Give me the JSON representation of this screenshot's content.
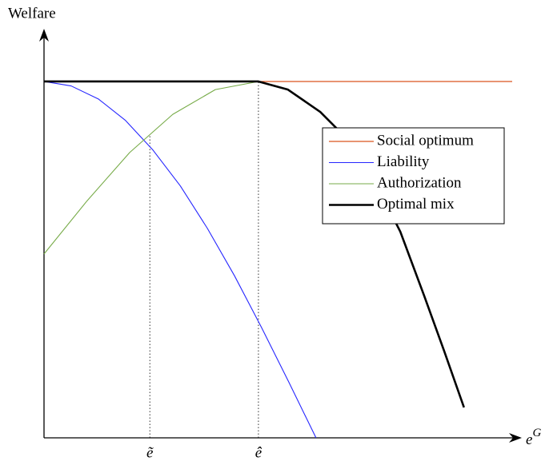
{
  "chart_data": {
    "type": "line",
    "ylabel": "Welfare",
    "xlabel": {
      "text": "e",
      "superscript": "G"
    },
    "xlim": [
      0,
      100
    ],
    "ylim": [
      0,
      100
    ],
    "xticks": [
      {
        "value": 22.6,
        "label": "ẽ"
      },
      {
        "value": 45.8,
        "label": "ê"
      }
    ],
    "legend": "center right",
    "series": [
      {
        "name": "Social optimum",
        "color": "#d9541e",
        "line_width": 1.3,
        "x": [
          0,
          100
        ],
        "values": [
          87.8,
          87.8
        ]
      },
      {
        "name": "Liability",
        "color": "#2626ff",
        "line_width": 1.1,
        "x": [
          0,
          5.8,
          11.6,
          17.4,
          23.2,
          29.1,
          34.9,
          40.7,
          46.5,
          52.3,
          58.1
        ],
        "values": [
          87.8,
          86.7,
          83.5,
          78.2,
          71.0,
          62.1,
          51.6,
          39.9,
          27.1,
          13.7,
          0
        ]
      },
      {
        "name": "Authorization",
        "color": "#77ab48",
        "line_width": 1.1,
        "x": [
          0,
          9.2,
          18.3,
          27.5,
          36.6,
          45.8
        ],
        "values": [
          45.3,
          58.4,
          70.3,
          79.7,
          85.8,
          87.8
        ]
      },
      {
        "name": "Optimal mix",
        "color": "#000000",
        "line_width": 2.6,
        "x": [
          0,
          45.8,
          52.1,
          59.0,
          64.1,
          70.9,
          76.1,
          81.2,
          85.5,
          89.7
        ],
        "values": [
          87.8,
          87.8,
          85.8,
          80.3,
          74.4,
          62.6,
          50.8,
          35.0,
          21.3,
          7.5
        ]
      }
    ]
  }
}
